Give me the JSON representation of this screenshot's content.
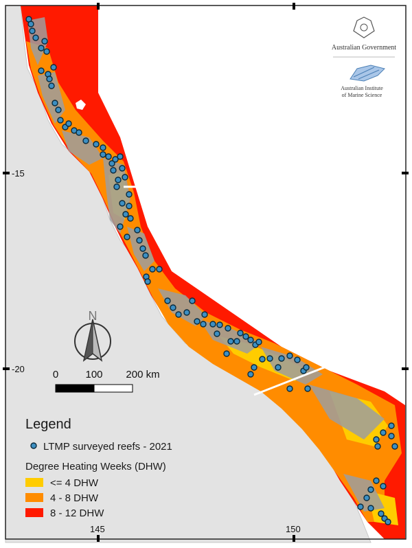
{
  "map": {
    "axis": {
      "lat_labels": [
        "-15",
        "-20"
      ],
      "lon_labels": [
        "145",
        "150"
      ]
    },
    "north_arrow": {
      "label": "N"
    },
    "scale_bar": {
      "labels": [
        "0",
        "100",
        "200 km"
      ]
    },
    "logos": {
      "government": "Australian Government",
      "aims_line1": "Australian Institute",
      "aims_line2": "of Marine Science"
    },
    "legend": {
      "title": "Legend",
      "points_label": "LTMP surveyed reefs - 2021",
      "dhw_title": "Degree Heating Weeks (DHW)",
      "classes": [
        {
          "label": "<= 4 DHW",
          "color": "#ffcc00"
        },
        {
          "label": "4 - 8 DHW",
          "color": "#ff8c00"
        },
        {
          "label": "8 - 12 DHW",
          "color": "#ff1a00"
        }
      ]
    },
    "colors": {
      "land": "#e3e3e3",
      "reef": "#9e9e9e",
      "point_fill": "#3d8fc2",
      "point_stroke": "#0a2a3c"
    }
  }
}
